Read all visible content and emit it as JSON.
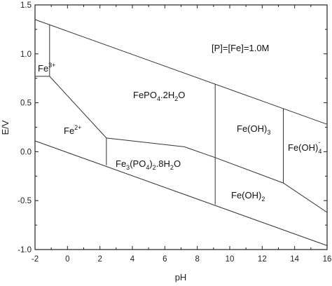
{
  "diagram": {
    "annotation": "[P]=[Fe]=1.0M",
    "x_axis": {
      "label": "pH",
      "range": [
        -2,
        16
      ],
      "ticks": [
        "-2",
        "0",
        "2",
        "4",
        "6",
        "8",
        "10",
        "12",
        "14",
        "16"
      ]
    },
    "y_axis": {
      "label": "E/V",
      "range": [
        -1.0,
        1.5
      ],
      "ticks": [
        "-1.0",
        "-0.5",
        "0.0",
        "0.5",
        "1.0",
        "1.5"
      ]
    },
    "regions": {
      "fe3": {
        "base": "Fe",
        "sup": "3+"
      },
      "fe2": {
        "base": "Fe",
        "sup": "2+"
      },
      "fepo4": {
        "p1": "FePO",
        "s1": "4",
        "p2": ".2H",
        "s2": "2",
        "p3": "O"
      },
      "fe3po4": {
        "p1": "Fe",
        "s1": "3",
        "p2": "(PO",
        "s2": "4",
        "p3": ")",
        "s3": "2",
        "p4": ".8H",
        "s4": "2",
        "p5": "O"
      },
      "feoh3": {
        "base": "Fe(OH)",
        "sub": "3"
      },
      "feoh4": {
        "base": "Fe(OH)",
        "sub": "4",
        "sup": "-"
      },
      "feoh2": {
        "base": "Fe(OH)",
        "sub": "2"
      }
    },
    "boundaries": [
      {
        "name": "upper-water-line",
        "points": [
          [
            -2,
            1.35
          ],
          [
            16,
            0.28
          ]
        ]
      },
      {
        "name": "lower-water-line",
        "points": [
          [
            -2,
            0.11
          ],
          [
            16,
            -0.96
          ]
        ]
      },
      {
        "name": "fe3-fe2-boundary",
        "points": [
          [
            -2,
            0.77
          ],
          [
            -1.1,
            0.77
          ]
        ]
      },
      {
        "name": "fe3-fepo4-boundary",
        "points": [
          [
            -1.1,
            0.77
          ],
          [
            -1.1,
            1.3
          ]
        ]
      },
      {
        "name": "fe2-fepo4-boundary",
        "points": [
          [
            -1.1,
            0.77
          ],
          [
            2.4,
            0.14
          ]
        ]
      },
      {
        "name": "fepo4-fe3po4-boundary",
        "points": [
          [
            2.4,
            0.14
          ],
          [
            7.2,
            0.05
          ],
          [
            9.1,
            -0.06
          ]
        ]
      },
      {
        "name": "fe2-fe3po4-boundary",
        "points": [
          [
            2.4,
            0.14
          ],
          [
            2.4,
            -0.14
          ]
        ]
      },
      {
        "name": "fepo4-feoh3-boundary",
        "points": [
          [
            9.1,
            -0.06
          ],
          [
            9.1,
            0.69
          ]
        ]
      },
      {
        "name": "fe3po4-feoh2-boundary",
        "points": [
          [
            9.1,
            -0.06
          ],
          [
            9.1,
            -0.54
          ]
        ]
      },
      {
        "name": "feoh3-feoh2-boundary",
        "points": [
          [
            9.1,
            -0.06
          ],
          [
            13.3,
            -0.32
          ]
        ]
      },
      {
        "name": "feoh3-feoh4-boundary",
        "points": [
          [
            13.3,
            -0.32
          ],
          [
            13.3,
            0.44
          ]
        ]
      },
      {
        "name": "feoh4-feoh2-boundary",
        "points": [
          [
            13.3,
            -0.32
          ],
          [
            16,
            -0.62
          ]
        ]
      }
    ]
  }
}
